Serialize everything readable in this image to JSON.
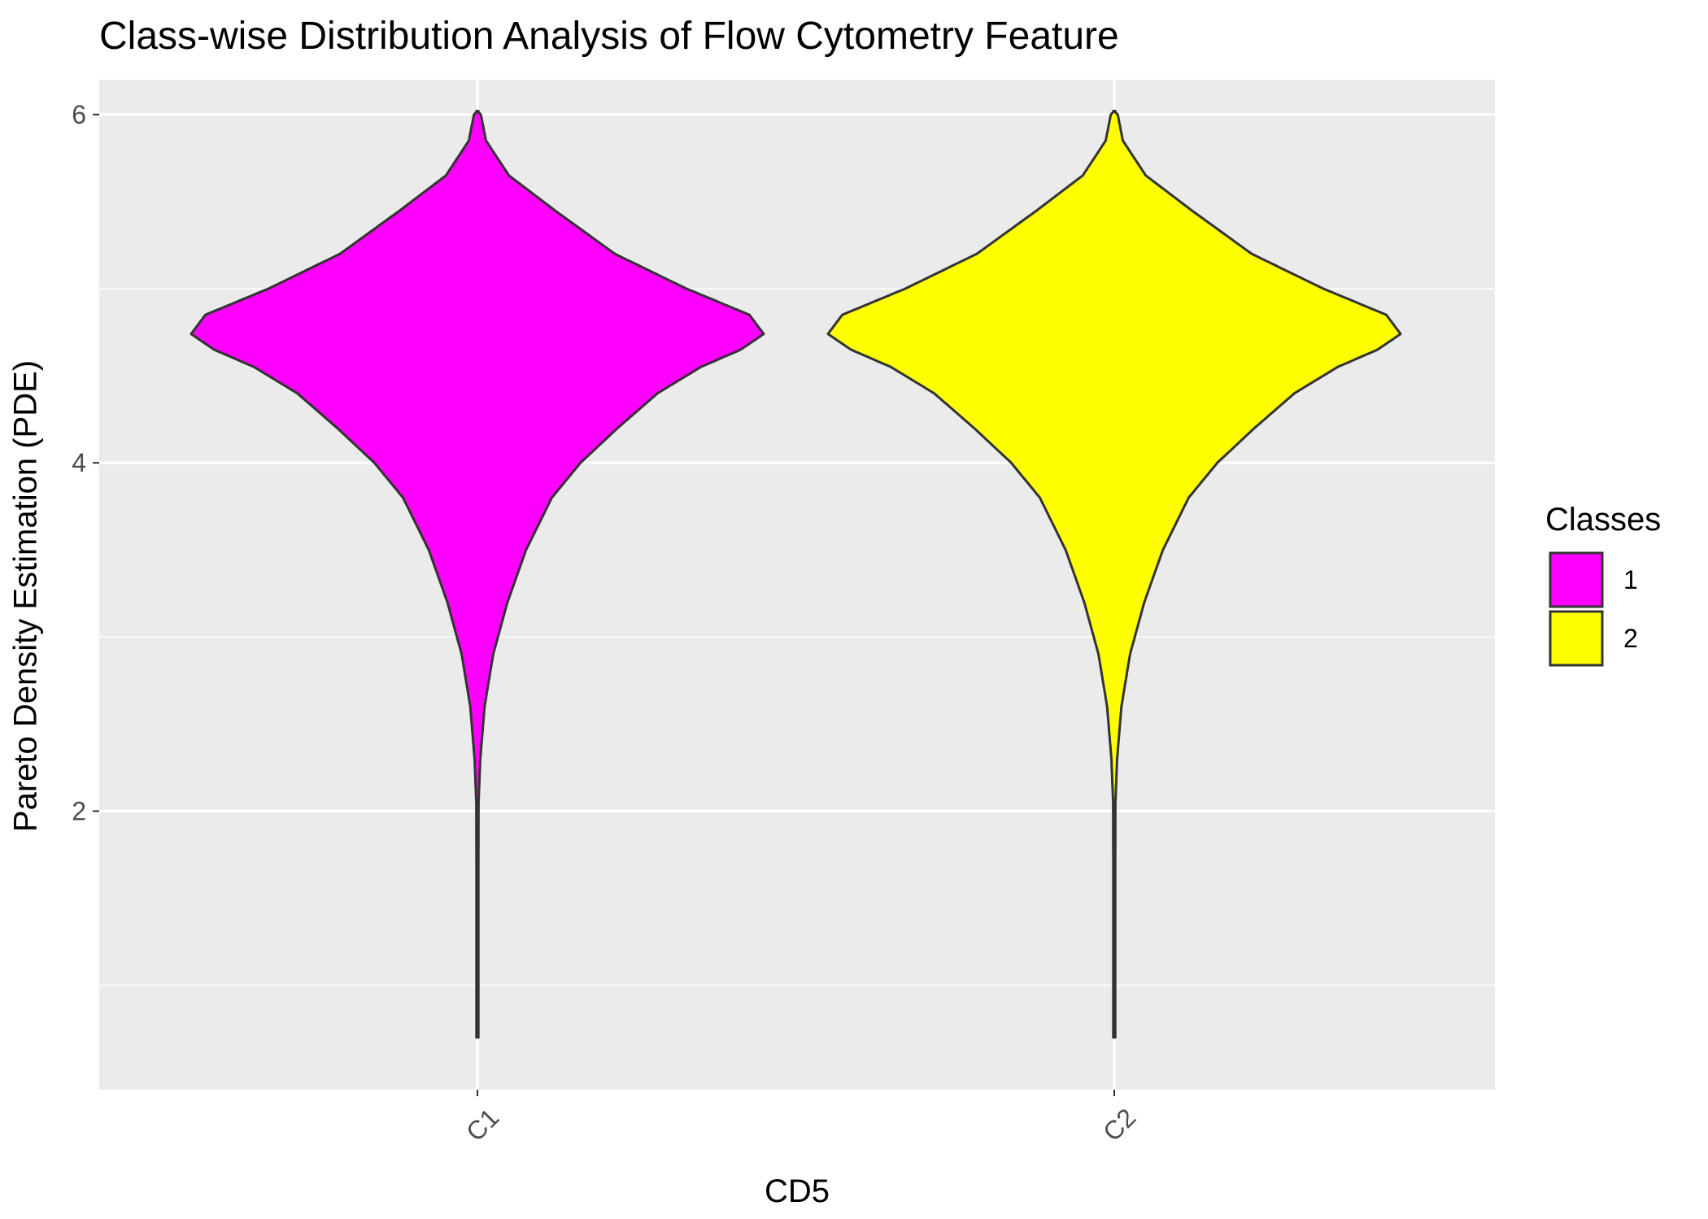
{
  "chart_data": {
    "type": "violin",
    "title": "Class-wise Distribution Analysis of Flow Cytometry Feature",
    "xlabel": "CD5",
    "ylabel": "Pareto Density Estimation (PDE)",
    "categories": [
      "C1",
      "C2"
    ],
    "ylim": [
      0.4,
      6.2
    ],
    "yticks": [
      2,
      4,
      6
    ],
    "y_minor_gridlines": [
      1,
      3,
      5
    ],
    "grid": true,
    "panel_background": "#ebebeb",
    "gridline_color": "#ffffff",
    "outline_color": "#333333",
    "series": [
      {
        "name": "1",
        "category": "C1",
        "color": "#ff00ff",
        "ymin": 0.7,
        "ymax": 6.02,
        "density_profile": [
          [
            0.7,
            0.002
          ],
          [
            2.05,
            0.004
          ],
          [
            2.3,
            0.01
          ],
          [
            2.6,
            0.025
          ],
          [
            2.9,
            0.055
          ],
          [
            3.2,
            0.105
          ],
          [
            3.5,
            0.17
          ],
          [
            3.8,
            0.26
          ],
          [
            4.0,
            0.36
          ],
          [
            4.2,
            0.49
          ],
          [
            4.4,
            0.63
          ],
          [
            4.55,
            0.78
          ],
          [
            4.65,
            0.92
          ],
          [
            4.74,
            1.0
          ],
          [
            4.85,
            0.95
          ],
          [
            5.0,
            0.73
          ],
          [
            5.2,
            0.48
          ],
          [
            5.45,
            0.27
          ],
          [
            5.65,
            0.11
          ],
          [
            5.85,
            0.03
          ],
          [
            6.0,
            0.012
          ],
          [
            6.02,
            0.0
          ]
        ]
      },
      {
        "name": "2",
        "category": "C2",
        "color": "#ffff00",
        "ymin": 0.7,
        "ymax": 6.02,
        "density_profile": [
          [
            0.7,
            0.002
          ],
          [
            2.05,
            0.004
          ],
          [
            2.3,
            0.01
          ],
          [
            2.6,
            0.025
          ],
          [
            2.9,
            0.055
          ],
          [
            3.2,
            0.105
          ],
          [
            3.5,
            0.17
          ],
          [
            3.8,
            0.26
          ],
          [
            4.0,
            0.36
          ],
          [
            4.2,
            0.49
          ],
          [
            4.4,
            0.63
          ],
          [
            4.55,
            0.78
          ],
          [
            4.65,
            0.92
          ],
          [
            4.74,
            1.0
          ],
          [
            4.85,
            0.95
          ],
          [
            5.0,
            0.73
          ],
          [
            5.2,
            0.48
          ],
          [
            5.45,
            0.27
          ],
          [
            5.65,
            0.11
          ],
          [
            5.85,
            0.03
          ],
          [
            6.0,
            0.012
          ],
          [
            6.02,
            0.0
          ]
        ]
      }
    ],
    "legend": {
      "title": "Classes",
      "position": "right",
      "entries": [
        {
          "label": "1",
          "color": "#ff00ff"
        },
        {
          "label": "2",
          "color": "#ffff00"
        }
      ]
    }
  }
}
